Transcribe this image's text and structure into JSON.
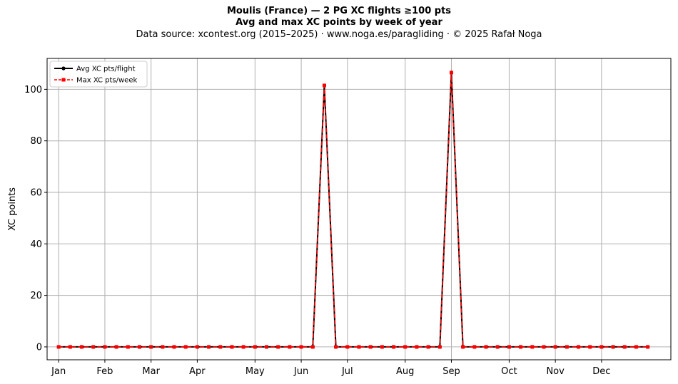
{
  "chart_data": {
    "type": "line",
    "title": "Moulis (France)  —  2 PG XC flights ≥100 pts",
    "subtitle": "Avg and max XC points by week of year",
    "source_note": "Data source: xcontest.org (2015–2025)  ·  www.noga.es/paragliding  ·  © 2025 Rafał Noga",
    "xlabel": "",
    "ylabel": "XC points",
    "xlim": [
      0,
      54
    ],
    "ylim": [
      -5,
      112
    ],
    "y_ticks": [
      0,
      20,
      40,
      60,
      80,
      100
    ],
    "x_ticks": [
      {
        "label": "Jan",
        "week": 1
      },
      {
        "label": "Feb",
        "week": 5
      },
      {
        "label": "Mar",
        "week": 9
      },
      {
        "label": "Apr",
        "week": 13
      },
      {
        "label": "May",
        "week": 18
      },
      {
        "label": "Jun",
        "week": 22
      },
      {
        "label": "Jul",
        "week": 26
      },
      {
        "label": "Aug",
        "week": 31
      },
      {
        "label": "Sep",
        "week": 35
      },
      {
        "label": "Oct",
        "week": 40
      },
      {
        "label": "Nov",
        "week": 44
      },
      {
        "label": "Dec",
        "week": 48
      }
    ],
    "grid": true,
    "legend_position": "top-left",
    "weeks": [
      1,
      2,
      3,
      4,
      5,
      6,
      7,
      8,
      9,
      10,
      11,
      12,
      13,
      14,
      15,
      16,
      17,
      18,
      19,
      20,
      21,
      22,
      23,
      24,
      25,
      26,
      27,
      28,
      29,
      30,
      31,
      32,
      33,
      34,
      35,
      36,
      37,
      38,
      39,
      40,
      41,
      42,
      43,
      44,
      45,
      46,
      47,
      48,
      49,
      50,
      51,
      52
    ],
    "series": [
      {
        "name": "Avg XC pts/flight",
        "color": "#000000",
        "style": "solid",
        "marker": "circle",
        "values": [
          0,
          0,
          0,
          0,
          0,
          0,
          0,
          0,
          0,
          0,
          0,
          0,
          0,
          0,
          0,
          0,
          0,
          0,
          0,
          0,
          0,
          0,
          0,
          101.5,
          0,
          0,
          0,
          0,
          0,
          0,
          0,
          0,
          0,
          0,
          106.5,
          0,
          0,
          0,
          0,
          0,
          0,
          0,
          0,
          0,
          0,
          0,
          0,
          0,
          0,
          0,
          0,
          0
        ]
      },
      {
        "name": "Max XC pts/week",
        "color": "#ff0000",
        "style": "dashed",
        "marker": "square",
        "values": [
          0,
          0,
          0,
          0,
          0,
          0,
          0,
          0,
          0,
          0,
          0,
          0,
          0,
          0,
          0,
          0,
          0,
          0,
          0,
          0,
          0,
          0,
          0,
          101.5,
          0,
          0,
          0,
          0,
          0,
          0,
          0,
          0,
          0,
          0,
          106.5,
          0,
          0,
          0,
          0,
          0,
          0,
          0,
          0,
          0,
          0,
          0,
          0,
          0,
          0,
          0,
          0,
          0
        ]
      }
    ]
  }
}
